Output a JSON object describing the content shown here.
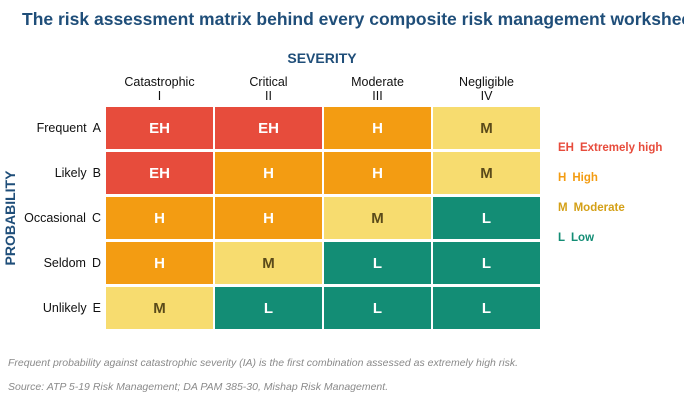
{
  "title": "The risk assessment matrix behind every composite risk management worksheet",
  "severity_title": "SEVERITY",
  "probability_title": "PROBABILITY",
  "colors": {
    "EH": "#e74c3c",
    "H": "#f39c12",
    "M": "#f7dc6f",
    "L": "#138d75",
    "title": "#1f4e79"
  },
  "text_colors": {
    "EH": "#ffffff",
    "H": "#ffffff",
    "M": "#5a4a1a",
    "L": "#ffffff"
  },
  "legend_colors": {
    "EH": "#e74c3c",
    "H": "#f39c12",
    "M": "#d4a017",
    "L": "#138d75"
  },
  "columns": [
    {
      "name": "Catastrophic",
      "code": "I"
    },
    {
      "name": "Critical",
      "code": "II"
    },
    {
      "name": "Moderate",
      "code": "III"
    },
    {
      "name": "Negligible",
      "code": "IV"
    }
  ],
  "rows": [
    {
      "name": "Frequent",
      "code": "A",
      "cells": [
        "EH",
        "EH",
        "H",
        "M"
      ]
    },
    {
      "name": "Likely",
      "code": "B",
      "cells": [
        "EH",
        "H",
        "H",
        "M"
      ]
    },
    {
      "name": "Occasional",
      "code": "C",
      "cells": [
        "H",
        "H",
        "M",
        "L"
      ]
    },
    {
      "name": "Seldom",
      "code": "D",
      "cells": [
        "H",
        "M",
        "L",
        "L"
      ]
    },
    {
      "name": "Unlikely",
      "code": "E",
      "cells": [
        "M",
        "L",
        "L",
        "L"
      ]
    }
  ],
  "legend": [
    {
      "code": "EH",
      "label": "Extremely high"
    },
    {
      "code": "H",
      "label": "High"
    },
    {
      "code": "M",
      "label": "Moderate"
    },
    {
      "code": "L",
      "label": "Low"
    }
  ],
  "footnote": "Frequent probability against catastrophic severity (IA) is the first combination assessed as extremely high risk.",
  "source": "Source: ATP 5-19 Risk Management; DA PAM 385-30, Mishap Risk Management."
}
